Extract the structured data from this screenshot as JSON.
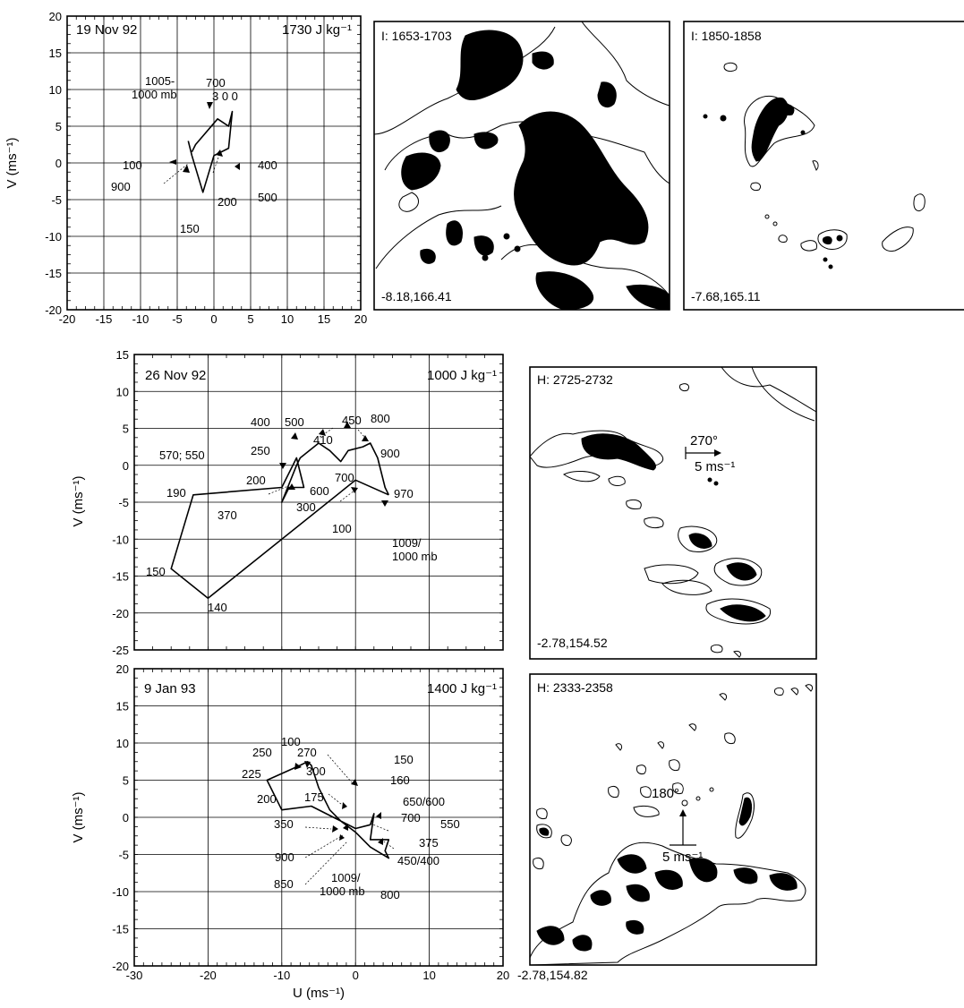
{
  "chart_data": [
    {
      "type": "line",
      "title": "19 Nov 92",
      "cape": "1730 J kg⁻¹",
      "xlabel": "",
      "ylabel": "V (ms⁻¹)",
      "xlim": [
        -20,
        20
      ],
      "ylim": [
        -20,
        20
      ],
      "xticks": [
        "-20",
        "-15",
        "-10",
        "-5",
        "0",
        "5",
        "10",
        "15",
        "20"
      ],
      "yticks": [
        "20",
        "15",
        "10",
        "5",
        "0",
        "-5",
        "-10",
        "-15",
        "-20"
      ],
      "grid": true,
      "series": [
        {
          "x": [
            -3,
            -2.5,
            0.5,
            2,
            2.5,
            2,
            0,
            -1.5,
            -3,
            -3.5
          ],
          "y": [
            1.5,
            2.5,
            6,
            5,
            7,
            2,
            1,
            -4,
            1,
            3
          ]
        }
      ],
      "pressure_labels": [
        "1005-",
        "1000 mb",
        "700",
        "3 0 0",
        "100",
        "400",
        "500",
        "200",
        "900",
        "150"
      ]
    },
    {
      "type": "line",
      "title": "26 Nov 92",
      "cape": "1000 J kg⁻¹",
      "xlabel": "",
      "ylabel": "V (ms⁻¹)",
      "xlim": [
        -30,
        20
      ],
      "ylim": [
        -25,
        15
      ],
      "xticks": [],
      "yticks": [
        "15",
        "10",
        "5",
        "0",
        "-5",
        "-10",
        "-15",
        "-20",
        "-25"
      ],
      "grid": true,
      "series": [
        {
          "x": [
            4.5,
            4,
            3,
            2,
            1,
            -1,
            -2,
            -3.5,
            -5,
            -7.5,
            -8,
            -10,
            -9,
            -7,
            -8,
            -10,
            -22,
            -25,
            -20,
            0,
            4.5
          ],
          "y": [
            -4,
            -3,
            1,
            3,
            2.5,
            2,
            0.5,
            2,
            3,
            1,
            0,
            -5,
            -3,
            -3,
            1,
            -3,
            -4,
            -14,
            -18,
            -2,
            -4
          ]
        }
      ],
      "pressure_labels": [
        "400",
        "500",
        "450",
        "800",
        "250",
        "410",
        "900",
        "570; 550",
        "200",
        "600",
        "700",
        "970",
        "190",
        "370",
        "300",
        "100",
        "1009/",
        "1000 mb",
        "150",
        "140"
      ]
    },
    {
      "type": "line",
      "title": "9 Jan 93",
      "cape": "1400 J kg⁻¹",
      "xlabel": "U (ms⁻¹)",
      "ylabel": "V (ms⁻¹)",
      "xlim": [
        -30,
        20
      ],
      "ylim": [
        -20,
        20
      ],
      "xticks": [
        "-30",
        "-20",
        "-10",
        "0",
        "10",
        "20"
      ],
      "yticks": [
        "20",
        "15",
        "10",
        "5",
        "0",
        "-5",
        "-10",
        "-15",
        "-20"
      ],
      "grid": true,
      "series": [
        {
          "x": [
            0,
            2,
            2.5,
            2,
            4.5,
            4,
            4.5,
            2,
            0,
            -2,
            -3.5,
            -5,
            -6,
            -6.5,
            -7.5,
            -12,
            -10,
            -6,
            -3,
            -1,
            0
          ],
          "y": [
            -1.5,
            -1,
            0.5,
            -3,
            -3,
            -4.5,
            -5.5,
            -4,
            -2,
            -0.5,
            1,
            4,
            7,
            7.5,
            7,
            5,
            1,
            1.5,
            0,
            -1,
            -1.5
          ]
        }
      ],
      "pressure_labels": [
        "100",
        "250",
        "270",
        "150",
        "225",
        "300",
        "160",
        "650/600",
        "200",
        "175",
        "700",
        "550",
        "350",
        "375",
        "900",
        "450/400",
        "1009/",
        "1000 mb",
        "850",
        "800"
      ]
    }
  ],
  "radar_panels": [
    {
      "time": "I:  1653-1703",
      "coords": "-8.18,166.41"
    },
    {
      "time": "I:  1850-1858",
      "coords": "-7.68,165.11"
    },
    {
      "time": "H:  2725-2732",
      "coords": "-2.78,154.52",
      "motion_dir": "270°",
      "motion_speed": "5  ms⁻¹"
    },
    {
      "time": "H:  2333-2358",
      "coords": "-2.78,154.82",
      "motion_dir": "180°",
      "motion_speed": "5  ms⁻¹"
    }
  ]
}
